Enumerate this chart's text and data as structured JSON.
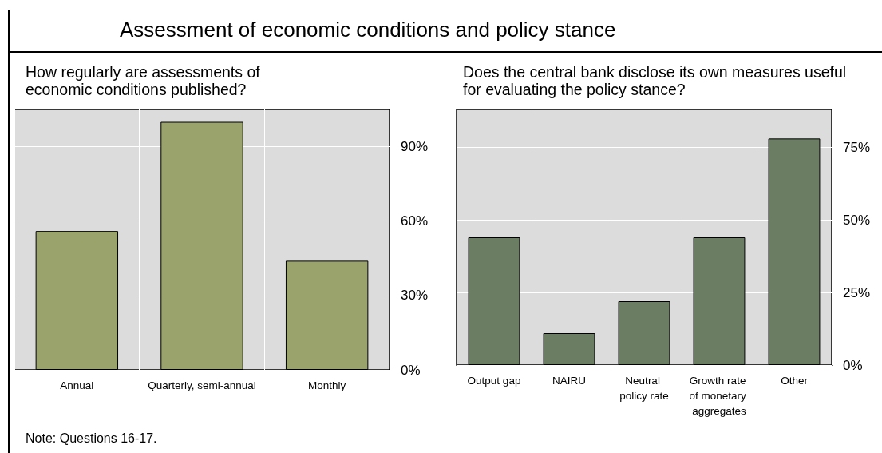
{
  "chart_data": [
    {
      "type": "bar",
      "title": "Assessment of economic conditions and policy stance",
      "subtitle": "How regularly are assessments of economic conditions published?",
      "categories": [
        "Annual",
        "Quarterly, semi-annual",
        "Monthly"
      ],
      "values": [
        56,
        100,
        44
      ],
      "color": "#99a36b",
      "ylim": [
        0,
        105
      ],
      "yticks": [
        {
          "value": 0,
          "label": "0%"
        },
        {
          "value": 30,
          "label": "30%"
        },
        {
          "value": 60,
          "label": "60%"
        },
        {
          "value": 90,
          "label": "90%"
        }
      ],
      "grid": true,
      "annotations": [
        "Note: Questions 16-17."
      ]
    },
    {
      "type": "bar",
      "subtitle": "Does the central bank disclose its own measures useful for evaluating the policy stance?",
      "categories": [
        "Output gap",
        "NAIRU",
        "Neutral policy rate",
        "Growth rate of monetary aggregates",
        "Other"
      ],
      "values": [
        44,
        11,
        22,
        44,
        78
      ],
      "color": "#6b7d63",
      "ylim": [
        0,
        88
      ],
      "yticks": [
        {
          "value": 0,
          "label": "0%"
        },
        {
          "value": 25,
          "label": "25%"
        },
        {
          "value": 50,
          "label": "50%"
        },
        {
          "value": 75,
          "label": "75%"
        }
      ],
      "grid": true
    }
  ]
}
